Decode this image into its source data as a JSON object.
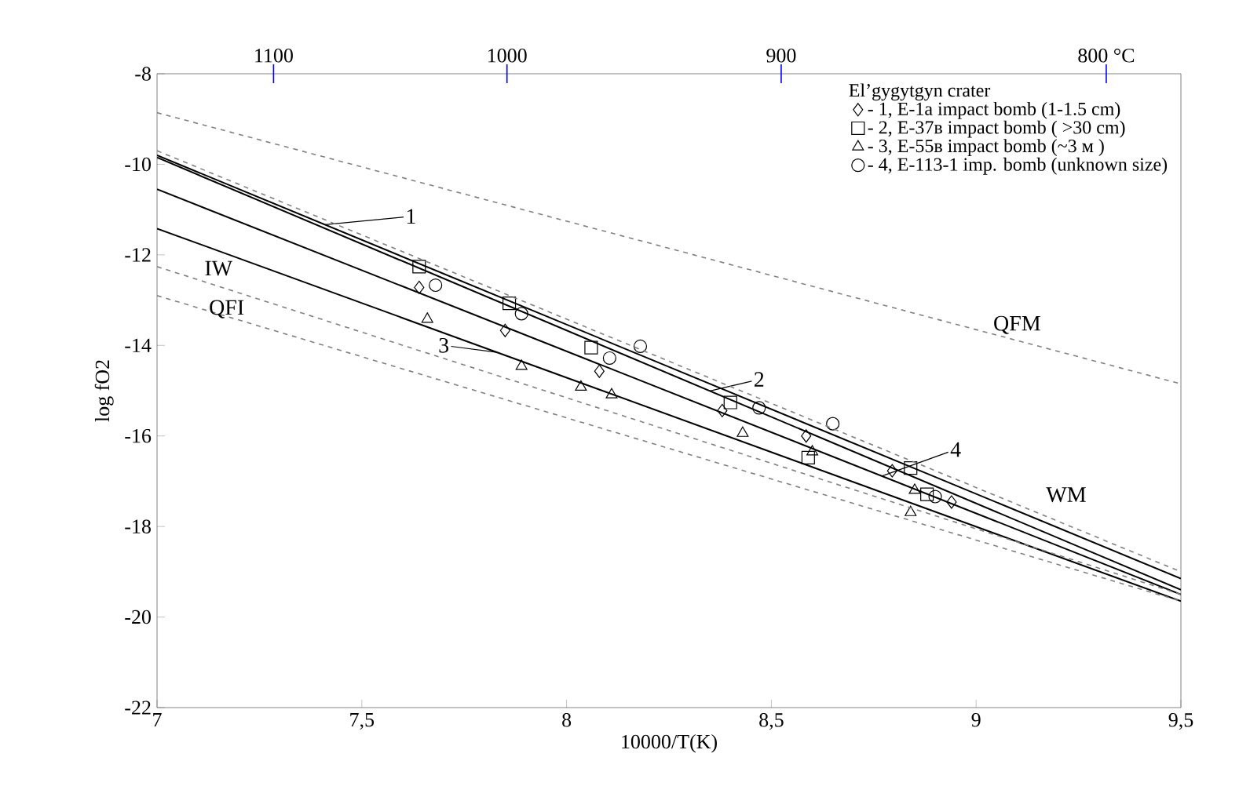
{
  "chart_data": {
    "type": "scatter",
    "xlabel": "10000/T(K)",
    "ylabel": "log fO2",
    "legend_title": "El’gygytgyn  crater",
    "legend": "top right",
    "xlim": [
      7,
      9.5
    ],
    "xticks": [
      7,
      {
        "value": 7.5,
        "label": "7,5"
      },
      8,
      {
        "value": 8.5,
        "label": "8,5"
      },
      9,
      {
        "value": 9.5,
        "label": "9,5"
      }
    ],
    "ylim": [
      -22,
      -8
    ],
    "yticks": [
      -22,
      -20,
      -18,
      -16,
      -14,
      -12,
      -10,
      -8
    ],
    "annotations": [
      "1100",
      "1000",
      "900",
      "800 °C"
    ],
    "series": [
      {
        "type": "scatter",
        "name": "- 1, E-1a  impact bomb (1-1.5 cm)",
        "marker": "diamond",
        "color": "#000000",
        "x": [
          7.64,
          7.85,
          8.08,
          8.38,
          8.585,
          8.795,
          8.94
        ],
        "values": [
          -12.72,
          -13.67,
          -14.57,
          -15.44,
          -16.0,
          -16.77,
          -17.46
        ]
      },
      {
        "type": "scatter",
        "name": "- 2, E-37в  impact bomb ( >30 cm)",
        "marker": "square",
        "color": "#000000",
        "x": [
          7.64,
          7.86,
          8.06,
          8.4,
          8.59,
          8.84,
          8.88
        ],
        "values": [
          -12.26,
          -13.07,
          -14.05,
          -15.26,
          -16.48,
          -16.71,
          -17.29
        ]
      },
      {
        "type": "scatter",
        "name": "- 3, E-55в  impact bomb  (~3 м )",
        "marker": "triangle",
        "color": "#000000",
        "x": [
          7.66,
          7.89,
          8.035,
          8.11,
          8.43,
          8.6,
          8.84,
          8.85
        ],
        "values": [
          -13.42,
          -14.46,
          -14.92,
          -15.09,
          -15.94,
          -16.35,
          -17.69,
          -17.2
        ]
      },
      {
        "type": "scatter",
        "name": "- 4, E-113-1 imp. bomb (unknown size)",
        "marker": "circle",
        "color": "#000000",
        "x": [
          7.68,
          7.89,
          8.105,
          8.18,
          8.47,
          8.65,
          8.9
        ],
        "values": [
          -12.67,
          -13.3,
          -14.28,
          -14.02,
          -15.38,
          -15.73,
          -17.34
        ]
      },
      {
        "type": "line",
        "name": "1",
        "color": "#000000",
        "line_style": "solid",
        "x": [
          7,
          9.5
        ],
        "values": [
          -9.8,
          -19.15
        ]
      },
      {
        "type": "line",
        "name": "2",
        "color": "#000000",
        "line_style": "solid",
        "x": [
          7,
          9.5
        ],
        "values": [
          -9.85,
          -19.4
        ]
      },
      {
        "type": "line",
        "name": "3",
        "color": "#000000",
        "line_style": "solid",
        "x": [
          7,
          9.5
        ],
        "values": [
          -11.42,
          -19.65
        ]
      },
      {
        "type": "line",
        "name": "4",
        "color": "#000000",
        "line_style": "solid",
        "x": [
          7,
          9.5
        ],
        "values": [
          -10.55,
          -19.5
        ]
      },
      {
        "type": "line",
        "name": "QFM",
        "color": "#808080",
        "line_style": "dashed",
        "x": [
          7,
          9.5
        ],
        "values": [
          -8.86,
          -14.85
        ]
      },
      {
        "type": "line",
        "name": "WM",
        "color": "#808080",
        "line_style": "dashed",
        "x": [
          7,
          9.5
        ],
        "values": [
          -9.7,
          -19.0
        ]
      },
      {
        "type": "line",
        "name": "IW",
        "color": "#808080",
        "line_style": "dashed",
        "x": [
          7,
          9.5
        ],
        "values": [
          -12.26,
          -19.5
        ]
      },
      {
        "type": "line",
        "name": "QFI",
        "color": "#808080",
        "line_style": "dashed",
        "x": [
          7,
          9.5
        ],
        "values": [
          -12.9,
          -19.65
        ]
      }
    ]
  }
}
